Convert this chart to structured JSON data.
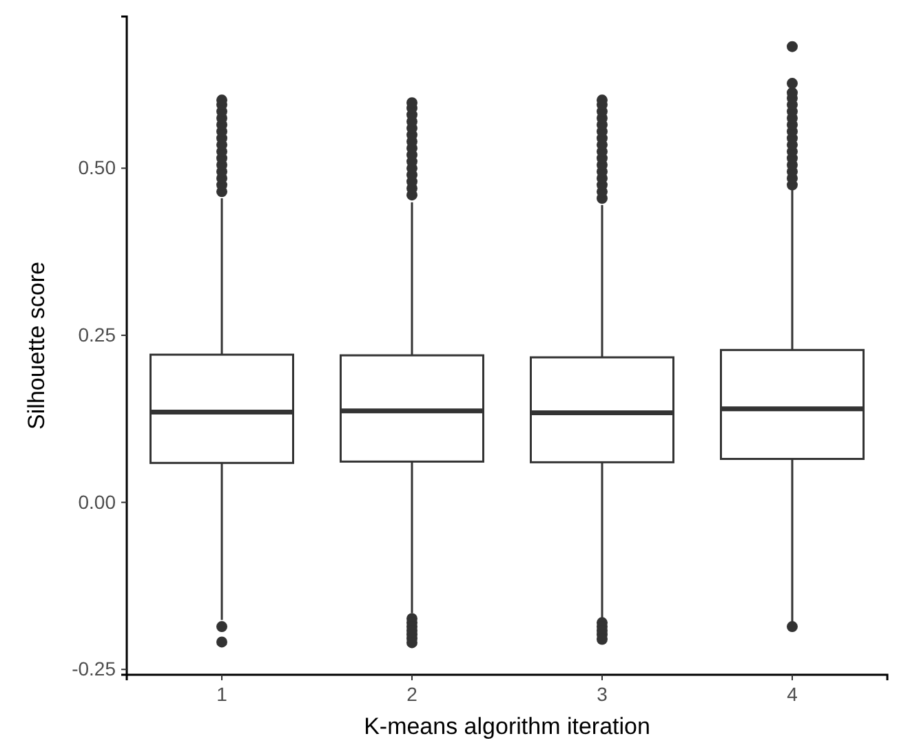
{
  "chart_data": {
    "type": "box",
    "xlabel": "K-means algorithm iteration",
    "ylabel": "Silhouette score",
    "categories": [
      "1",
      "2",
      "3",
      "4"
    ],
    "ylim": [
      -0.258,
      0.727
    ],
    "yticks": [
      {
        "value": -0.25,
        "label": "-0.25"
      },
      {
        "value": 0,
        "label": "0.00"
      },
      {
        "value": 0.25,
        "label": "0.25"
      },
      {
        "value": 0.5,
        "label": "0.50"
      }
    ],
    "grid": false,
    "color": "#333333",
    "boxes": [
      {
        "low": -0.176,
        "q1": 0.059,
        "median": 0.135,
        "q3": 0.221,
        "high": 0.455,
        "outliers": [
          0.465,
          0.475,
          0.485,
          0.495,
          0.505,
          0.515,
          0.525,
          0.535,
          0.545,
          0.555,
          0.565,
          0.575,
          0.585,
          0.595,
          0.602,
          -0.186,
          -0.209
        ]
      },
      {
        "low": -0.166,
        "q1": 0.061,
        "median": 0.137,
        "q3": 0.22,
        "high": 0.449,
        "outliers": [
          0.46,
          0.47,
          0.48,
          0.49,
          0.5,
          0.51,
          0.52,
          0.53,
          0.54,
          0.55,
          0.56,
          0.57,
          0.58,
          0.59,
          0.598,
          -0.174,
          -0.18,
          -0.186,
          -0.192,
          -0.198,
          -0.204,
          -0.21
        ]
      },
      {
        "low": -0.174,
        "q1": 0.06,
        "median": 0.134,
        "q3": 0.217,
        "high": 0.445,
        "outliers": [
          0.455,
          0.465,
          0.475,
          0.485,
          0.495,
          0.505,
          0.515,
          0.525,
          0.535,
          0.545,
          0.555,
          0.565,
          0.575,
          0.585,
          0.595,
          0.602,
          -0.18,
          -0.186,
          -0.192,
          -0.198,
          -0.205
        ]
      },
      {
        "low": -0.18,
        "q1": 0.065,
        "median": 0.14,
        "q3": 0.228,
        "high": 0.471,
        "outliers": [
          0.475,
          0.485,
          0.495,
          0.505,
          0.515,
          0.525,
          0.535,
          0.545,
          0.555,
          0.565,
          0.575,
          0.585,
          0.595,
          0.605,
          0.613,
          0.627,
          0.682,
          -0.186
        ]
      }
    ]
  }
}
